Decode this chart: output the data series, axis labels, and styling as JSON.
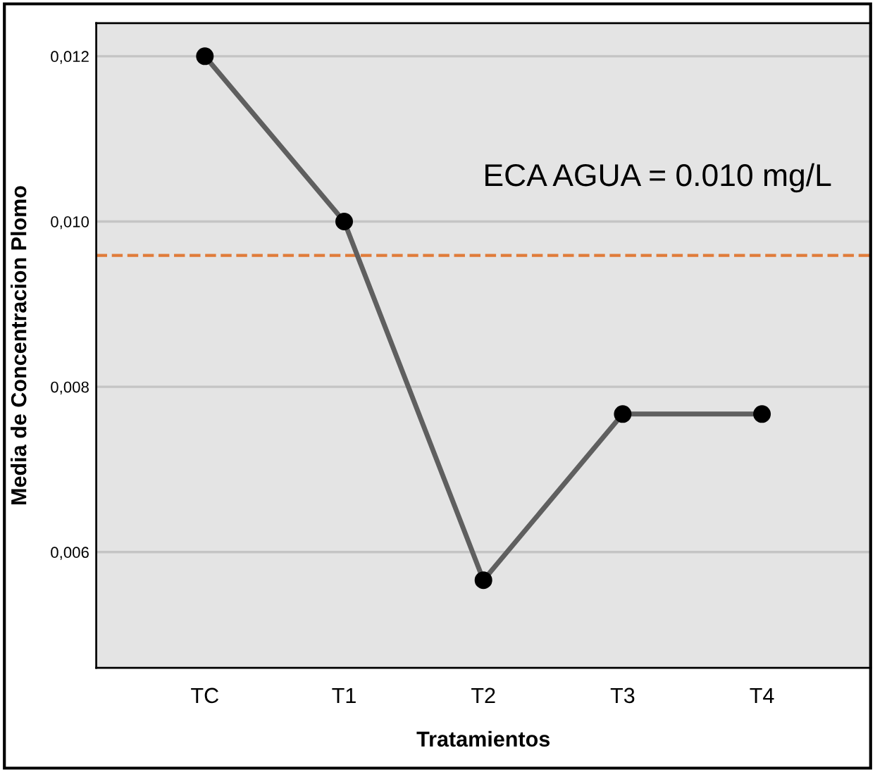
{
  "chart_data": {
    "type": "line",
    "xlabel": "Tratamientos",
    "ylabel": "Media de Concentracion Plomo",
    "categories": [
      "TC",
      "T1",
      "T2",
      "T3",
      "T4"
    ],
    "series": [
      {
        "color": "#5f5f5f",
        "values": [
          0.012,
          0.01,
          0.00566,
          0.00767,
          0.00767
        ]
      }
    ],
    "marker": "circle",
    "line_style": "solid",
    "grid": "y",
    "ylim": [
      0.0046,
      0.0124
    ],
    "yticks": [
      {
        "value": 0.006,
        "label": "0,006"
      },
      {
        "value": 0.008,
        "label": "0,008"
      },
      {
        "value": 0.01,
        "label": "0,010"
      },
      {
        "value": 0.012,
        "label": "0,012"
      }
    ],
    "ref_lines": [
      {
        "axis": "y",
        "value": 0.00959,
        "color": "#e07b39",
        "line_style": "dashed"
      }
    ],
    "annotations": [
      "ECA AGUA = 0.010 mg/L"
    ]
  }
}
